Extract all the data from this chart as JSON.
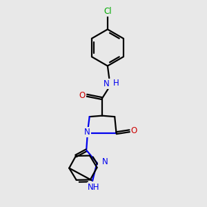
{
  "background_color": "#e8e8e8",
  "bond_color": "#000000",
  "N_color": "#0000ee",
  "O_color": "#cc0000",
  "Cl_color": "#00aa00",
  "line_width": 1.6,
  "figsize": [
    3.0,
    3.0
  ],
  "dpi": 100,
  "xlim": [
    0,
    10
  ],
  "ylim": [
    0,
    10
  ]
}
